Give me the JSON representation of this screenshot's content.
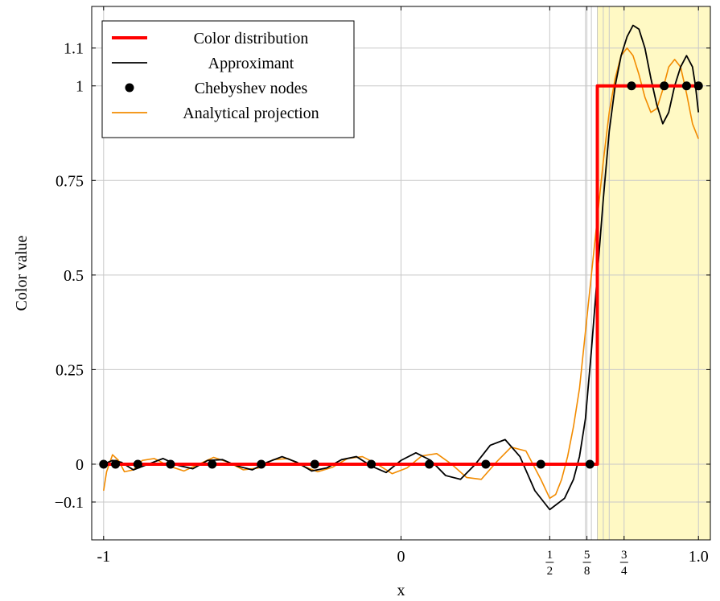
{
  "chart_data": {
    "type": "line",
    "title": "",
    "xlabel": "x",
    "ylabel": "Color value",
    "xlim": [
      -1.04,
      1.04
    ],
    "ylim": [
      -0.2,
      1.21
    ],
    "grid": true,
    "legend_position": "top-left",
    "x_ticks": [
      {
        "value": -1,
        "label": "-1"
      },
      {
        "value": 0,
        "label": "0"
      },
      {
        "value": 0.5,
        "label": "",
        "num": "1",
        "den": "2"
      },
      {
        "value": 0.625,
        "label": "",
        "num": "5",
        "den": "8"
      },
      {
        "value": 0.75,
        "label": "",
        "num": "3",
        "den": "4"
      },
      {
        "value": 1.0,
        "label": "1.0"
      }
    ],
    "y_ticks": [
      {
        "value": -0.1,
        "label": "−0.1"
      },
      {
        "value": 0,
        "label": "0"
      },
      {
        "value": 0.25,
        "label": "0.25"
      },
      {
        "value": 0.5,
        "label": "0.5"
      },
      {
        "value": 0.75,
        "label": "0.75"
      },
      {
        "value": 1,
        "label": "1"
      },
      {
        "value": 1.1,
        "label": "1.1"
      }
    ],
    "extra_x_gridlines": [
      0.62,
      0.64,
      0.66,
      0.68,
      0.7
    ],
    "highlight_region": {
      "x": [
        0.66,
        1.04
      ],
      "color": "#fff9c4"
    },
    "series": [
      {
        "name": "Color distribution",
        "color": "#ff0000",
        "style": "step",
        "x": [
          -1,
          0.66,
          0.66,
          1
        ],
        "y": [
          0,
          0,
          1,
          1
        ]
      },
      {
        "name": "Approximant",
        "color": "#000000",
        "style": "line",
        "x": [
          -1,
          -0.97,
          -0.94,
          -0.9,
          -0.85,
          -0.8,
          -0.75,
          -0.7,
          -0.65,
          -0.6,
          -0.55,
          -0.5,
          -0.45,
          -0.4,
          -0.35,
          -0.3,
          -0.25,
          -0.2,
          -0.15,
          -0.1,
          -0.05,
          0,
          0.05,
          0.1,
          0.15,
          0.2,
          0.25,
          0.3,
          0.35,
          0.4,
          0.45,
          0.5,
          0.55,
          0.58,
          0.6,
          0.62,
          0.64,
          0.66,
          0.68,
          0.7,
          0.72,
          0.74,
          0.76,
          0.78,
          0.8,
          0.82,
          0.84,
          0.86,
          0.88,
          0.9,
          0.92,
          0.94,
          0.96,
          0.98,
          0.99,
          1.0
        ],
        "y": [
          0,
          0.01,
          0.005,
          -0.015,
          0,
          0.015,
          -0.003,
          -0.012,
          0.01,
          0.012,
          -0.005,
          -0.015,
          0.005,
          0.02,
          0.005,
          -0.018,
          -0.01,
          0.012,
          0.02,
          -0.005,
          -0.022,
          0.01,
          0.03,
          0.01,
          -0.03,
          -0.04,
          0,
          0.05,
          0.065,
          0.02,
          -0.07,
          -0.12,
          -0.09,
          -0.04,
          0.02,
          0.12,
          0.3,
          0.5,
          0.7,
          0.88,
          1.0,
          1.08,
          1.13,
          1.16,
          1.15,
          1.1,
          1.02,
          0.95,
          0.9,
          0.93,
          1.0,
          1.05,
          1.08,
          1.05,
          1.0,
          0.93
        ]
      },
      {
        "name": "Chebyshev nodes",
        "color": "#000000",
        "style": "markers",
        "x": [
          -1,
          -0.96,
          -0.885,
          -0.775,
          -0.635,
          -0.47,
          -0.29,
          -0.1,
          0.095,
          0.285,
          0.47,
          0.635,
          0.775,
          0.885,
          0.96,
          1.0
        ],
        "y": [
          0,
          0,
          0,
          0,
          0,
          0,
          0,
          0,
          0,
          0,
          0,
          0,
          1,
          1,
          1,
          1
        ]
      },
      {
        "name": "Analytical projection",
        "color": "#f28b00",
        "style": "line",
        "x": [
          -1,
          -0.99,
          -0.97,
          -0.95,
          -0.93,
          -0.9,
          -0.87,
          -0.83,
          -0.78,
          -0.73,
          -0.68,
          -0.63,
          -0.58,
          -0.53,
          -0.48,
          -0.43,
          -0.38,
          -0.33,
          -0.28,
          -0.23,
          -0.18,
          -0.13,
          -0.08,
          -0.03,
          0.02,
          0.07,
          0.12,
          0.17,
          0.22,
          0.27,
          0.32,
          0.37,
          0.42,
          0.47,
          0.5,
          0.52,
          0.54,
          0.56,
          0.58,
          0.6,
          0.62,
          0.64,
          0.66,
          0.68,
          0.7,
          0.72,
          0.74,
          0.76,
          0.78,
          0.8,
          0.82,
          0.84,
          0.86,
          0.88,
          0.9,
          0.92,
          0.94,
          0.96,
          0.98,
          1.0
        ],
        "y": [
          -0.07,
          -0.02,
          0.025,
          0.01,
          -0.02,
          -0.015,
          0.01,
          0.015,
          -0.005,
          -0.018,
          0.0,
          0.018,
          0.005,
          -0.015,
          -0.01,
          0.012,
          0.015,
          -0.005,
          -0.02,
          -0.008,
          0.015,
          0.02,
          0.0,
          -0.025,
          -0.01,
          0.022,
          0.028,
          0.0,
          -0.035,
          -0.04,
          0.005,
          0.045,
          0.035,
          -0.04,
          -0.09,
          -0.08,
          -0.04,
          0.02,
          0.1,
          0.2,
          0.35,
          0.5,
          0.65,
          0.8,
          0.93,
          1.02,
          1.08,
          1.1,
          1.08,
          1.03,
          0.97,
          0.93,
          0.94,
          0.99,
          1.05,
          1.07,
          1.05,
          0.98,
          0.9,
          0.86
        ]
      }
    ]
  }
}
